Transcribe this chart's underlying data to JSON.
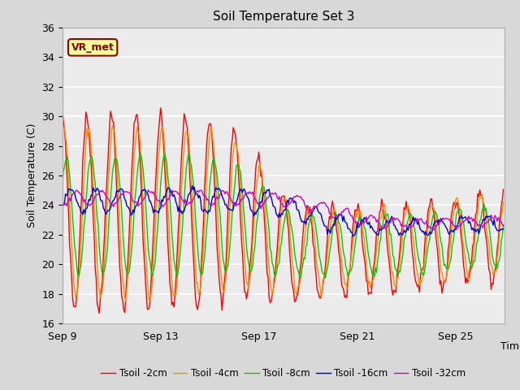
{
  "title": "Soil Temperature Set 3",
  "xlabel": "Time",
  "ylabel": "Soil Temperature (C)",
  "ylim": [
    16,
    36
  ],
  "yticks": [
    16,
    18,
    20,
    22,
    24,
    26,
    28,
    30,
    32,
    34,
    36
  ],
  "xtick_labels": [
    "Sep 9",
    "Sep 13",
    "Sep 17",
    "Sep 21",
    "Sep 25"
  ],
  "xtick_positions": [
    0,
    96,
    192,
    288,
    384
  ],
  "xlim": [
    0,
    432
  ],
  "bg_color": "#e0e0e0",
  "plot_bg_color": "#ebebeb",
  "legend_label": "VR_met",
  "series": [
    {
      "label": "Tsoil -2cm",
      "color": "#ff0000"
    },
    {
      "label": "Tsoil -4cm",
      "color": "#ff8c00"
    },
    {
      "label": "Tsoil -8cm",
      "color": "#00cc00"
    },
    {
      "label": "Tsoil -16cm",
      "color": "#0000cc"
    },
    {
      "label": "Tsoil -32cm",
      "color": "#cc00cc"
    }
  ],
  "n_points": 432,
  "total_days": 18
}
